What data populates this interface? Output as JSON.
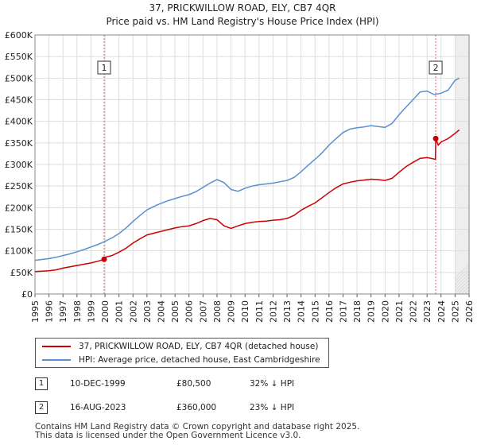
{
  "chart_data": {
    "type": "line",
    "title": "37, PRICKWILLOW ROAD, ELY, CB7 4QR",
    "subtitle": "Price paid vs. HM Land Registry's House Price Index (HPI)",
    "xlim": [
      1995,
      2026
    ],
    "ylim": [
      0,
      600000
    ],
    "x_ticks": [
      "1995",
      "1996",
      "1997",
      "1998",
      "1999",
      "2000",
      "2001",
      "2002",
      "2003",
      "2004",
      "2005",
      "2006",
      "2007",
      "2008",
      "2009",
      "2010",
      "2011",
      "2012",
      "2013",
      "2014",
      "2015",
      "2016",
      "2017",
      "2018",
      "2019",
      "2020",
      "2021",
      "2022",
      "2023",
      "2024",
      "2025",
      "2026"
    ],
    "y_ticks": [
      {
        "value": 0,
        "label": "£0"
      },
      {
        "value": 50000,
        "label": "£50K"
      },
      {
        "value": 100000,
        "label": "£100K"
      },
      {
        "value": 150000,
        "label": "£150K"
      },
      {
        "value": 200000,
        "label": "£200K"
      },
      {
        "value": 250000,
        "label": "£250K"
      },
      {
        "value": 300000,
        "label": "£300K"
      },
      {
        "value": 350000,
        "label": "£350K"
      },
      {
        "value": 400000,
        "label": "£400K"
      },
      {
        "value": 450000,
        "label": "£450K"
      },
      {
        "value": 500000,
        "label": "£500K"
      },
      {
        "value": 550000,
        "label": "£550K"
      },
      {
        "value": 600000,
        "label": "£600K"
      }
    ],
    "grid": true,
    "future_shade_from": 2025.0,
    "series": [
      {
        "name": "37, PRICKWILLOW ROAD, ELY, CB7 4QR (detached house)",
        "color": "#cc0000",
        "x": [
          1995.0,
          1995.5,
          1996.0,
          1996.5,
          1997.0,
          1997.5,
          1998.0,
          1998.5,
          1999.0,
          1999.5,
          1999.94,
          2000.0,
          2000.5,
          2001.0,
          2001.5,
          2002.0,
          2002.5,
          2003.0,
          2003.5,
          2004.0,
          2004.5,
          2005.0,
          2005.5,
          2006.0,
          2006.5,
          2007.0,
          2007.5,
          2008.0,
          2008.5,
          2009.0,
          2009.5,
          2010.0,
          2010.5,
          2011.0,
          2011.5,
          2012.0,
          2012.5,
          2013.0,
          2013.5,
          2014.0,
          2014.5,
          2015.0,
          2015.5,
          2016.0,
          2016.5,
          2017.0,
          2017.5,
          2018.0,
          2018.5,
          2019.0,
          2019.5,
          2020.0,
          2020.5,
          2021.0,
          2021.5,
          2022.0,
          2022.5,
          2023.0,
          2023.6,
          2023.62,
          2023.8,
          2024.0,
          2024.5,
          2025.0,
          2025.3
        ],
        "values": [
          52000,
          53000,
          54000,
          56000,
          60000,
          63000,
          66000,
          69000,
          72000,
          76000,
          80500,
          85000,
          89000,
          97000,
          106000,
          118000,
          128000,
          137000,
          141000,
          145000,
          149000,
          153000,
          156000,
          158000,
          163000,
          170000,
          175000,
          172000,
          158000,
          152000,
          158000,
          163000,
          166000,
          168000,
          169000,
          171000,
          172000,
          175000,
          182000,
          194000,
          203000,
          211000,
          223000,
          235000,
          246000,
          255000,
          259000,
          262000,
          264000,
          266000,
          265000,
          263000,
          268000,
          282000,
          295000,
          305000,
          314000,
          316000,
          312000,
          360000,
          345000,
          352000,
          360000,
          372000,
          380000
        ]
      },
      {
        "name": "HPI: Average price, detached house, East Cambridgeshire",
        "color": "#5b8fd0",
        "x": [
          1995.0,
          1995.5,
          1996.0,
          1996.5,
          1997.0,
          1997.5,
          1998.0,
          1998.5,
          1999.0,
          1999.5,
          2000.0,
          2000.5,
          2001.0,
          2001.5,
          2002.0,
          2002.5,
          2003.0,
          2003.5,
          2004.0,
          2004.5,
          2005.0,
          2005.5,
          2006.0,
          2006.5,
          2007.0,
          2007.5,
          2008.0,
          2008.5,
          2009.0,
          2009.5,
          2010.0,
          2010.5,
          2011.0,
          2011.5,
          2012.0,
          2012.5,
          2013.0,
          2013.5,
          2014.0,
          2014.5,
          2015.0,
          2015.5,
          2016.0,
          2016.5,
          2017.0,
          2017.5,
          2018.0,
          2018.5,
          2019.0,
          2019.5,
          2020.0,
          2020.5,
          2021.0,
          2021.5,
          2022.0,
          2022.5,
          2023.0,
          2023.5,
          2024.0,
          2024.5,
          2025.0,
          2025.3
        ],
        "values": [
          78000,
          80000,
          82000,
          85000,
          89000,
          93000,
          98000,
          103000,
          109000,
          115000,
          122000,
          130000,
          140000,
          153000,
          168000,
          182000,
          195000,
          203000,
          210000,
          216000,
          221000,
          226000,
          230000,
          237000,
          247000,
          257000,
          265000,
          258000,
          242000,
          238000,
          245000,
          250000,
          253000,
          255000,
          257000,
          260000,
          263000,
          270000,
          283000,
          298000,
          312000,
          327000,
          345000,
          360000,
          374000,
          382000,
          385000,
          387000,
          390000,
          388000,
          386000,
          395000,
          415000,
          433000,
          450000,
          468000,
          470000,
          462000,
          465000,
          472000,
          495000,
          500000
        ]
      }
    ],
    "markers": [
      {
        "label": "1",
        "x": 1999.94,
        "value": 80500
      },
      {
        "label": "2",
        "x": 2023.62,
        "value": 360000
      }
    ]
  },
  "legend": {
    "items": [
      {
        "label": "37, PRICKWILLOW ROAD, ELY, CB7 4QR (detached house)",
        "color": "#cc0000"
      },
      {
        "label": "HPI: Average price, detached house, East Cambridgeshire",
        "color": "#5b8fd0"
      }
    ]
  },
  "transactions": [
    {
      "num": "1",
      "date": "10-DEC-1999",
      "price": "£80,500",
      "hpi": "32% ↓ HPI"
    },
    {
      "num": "2",
      "date": "16-AUG-2023",
      "price": "£360,000",
      "hpi": "23% ↓ HPI"
    }
  ],
  "footer": {
    "line1": "Contains HM Land Registry data © Crown copyright and database right 2025.",
    "line2": "This data is licensed under the Open Government Licence v3.0."
  }
}
